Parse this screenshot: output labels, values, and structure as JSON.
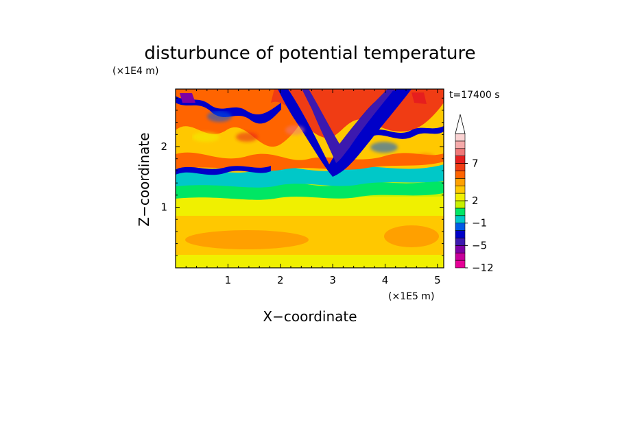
{
  "chart_data": {
    "type": "heatmap",
    "title": "disturbunce of potential temperature",
    "xlabel": "X−coordinate",
    "ylabel": "Z−coordinate",
    "x_unit": "(×1E5 m)",
    "y_unit": "(×1E4 m)",
    "time_label": "t=17400 s",
    "xlim": [
      0,
      5.12
    ],
    "ylim": [
      0,
      2.95
    ],
    "x_ticks": [
      1,
      2,
      3,
      4,
      5
    ],
    "y_ticks": [
      1,
      2
    ],
    "x_tick_labels": [
      "1",
      "2",
      "3",
      "4",
      "5"
    ],
    "y_tick_labels": [
      "1",
      "2"
    ],
    "colorbar": {
      "colors": [
        "#e60096",
        "#c8009b",
        "#7d00a5",
        "#3c19af",
        "#0000c8",
        "#005ae6",
        "#00c8c8",
        "#00e664",
        "#c8f000",
        "#f0f000",
        "#ffc800",
        "#ffa000",
        "#ff6400",
        "#f03c14",
        "#e61e1e",
        "#f07878",
        "#f5aaaa",
        "#fad2d2"
      ],
      "extend": "max",
      "tick_labels": [
        "7",
        "2",
        "−1",
        "−5",
        "−12"
      ]
    },
    "approx_field_by_height": [
      {
        "z_range": [
          0,
          1.0
        ],
        "dominant_value": "1 to 2",
        "description_color": "yellow-orange"
      },
      {
        "z_range": [
          1.0,
          1.5
        ],
        "dominant_value": "0 to 1",
        "description_color": "yellow-green"
      },
      {
        "z_range": [
          1.5,
          2.95
        ],
        "dominant_value": "-5 to 7",
        "description_color": "alternating blue/orange waves"
      }
    ]
  }
}
